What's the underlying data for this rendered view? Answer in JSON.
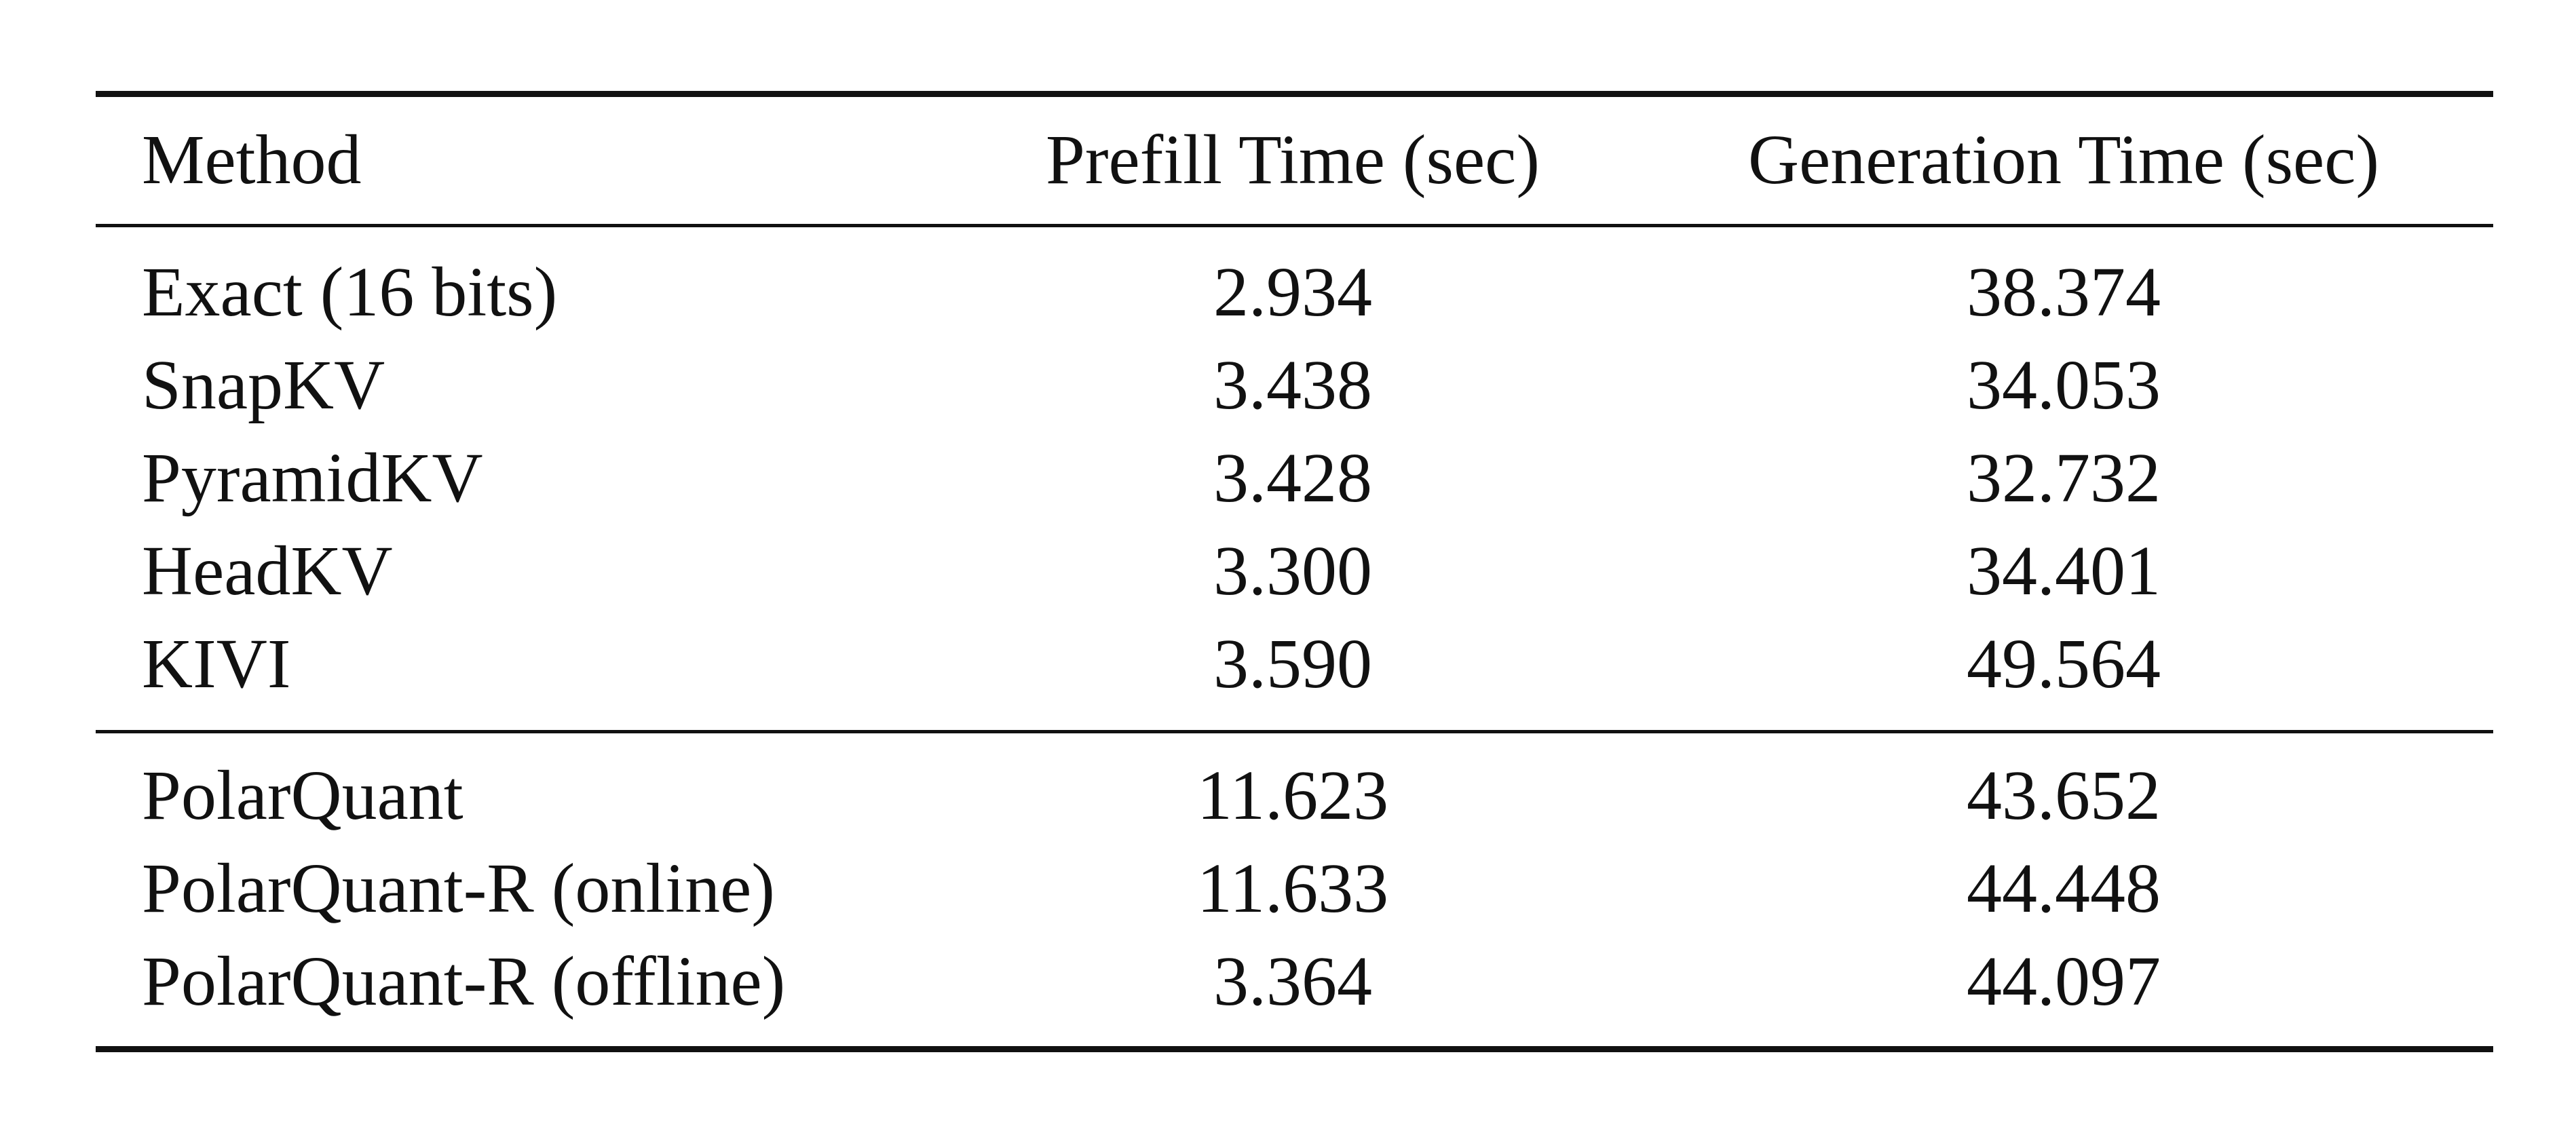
{
  "table": {
    "header": [
      "Method",
      "Prefill Time (sec)",
      "Generation Time (sec)"
    ],
    "groups": [
      {
        "rows": [
          [
            "Exact (16 bits)",
            "2.934",
            "38.374"
          ],
          [
            "SnapKV",
            "3.438",
            "34.053"
          ],
          [
            "PyramidKV",
            "3.428",
            "32.732"
          ],
          [
            "HeadKV",
            "3.300",
            "34.401"
          ],
          [
            "KIVI",
            "3.590",
            "49.564"
          ]
        ]
      },
      {
        "rows": [
          [
            "PolarQuant",
            "11.623",
            "43.652"
          ],
          [
            "PolarQuant-R (online)",
            "11.633",
            "44.448"
          ],
          [
            "PolarQuant-R (offline)",
            "3.364",
            "44.097"
          ]
        ]
      }
    ]
  }
}
